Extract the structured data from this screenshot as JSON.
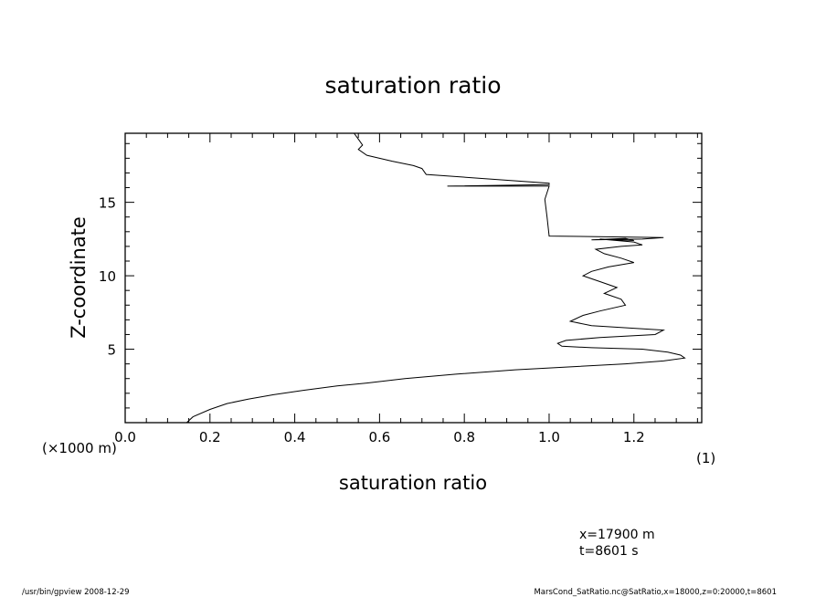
{
  "chart_data": {
    "type": "line",
    "title": "saturation ratio",
    "xlabel": "saturation ratio",
    "ylabel": "Z-coordinate",
    "y_unit_label": "(×1000 m)",
    "x_unit_label": "(1)",
    "xlim": [
      0.0,
      1.36
    ],
    "ylim": [
      0.0,
      19.7
    ],
    "x_ticks": [
      0.0,
      0.2,
      0.4,
      0.6,
      0.8,
      1.0,
      1.2
    ],
    "x_tick_labels": [
      "0.0",
      "0.2",
      "0.4",
      "0.6",
      "0.8",
      "1.0",
      "1.2"
    ],
    "y_ticks": [
      5,
      10,
      15
    ],
    "y_tick_labels": [
      "5",
      "10",
      "15"
    ],
    "grid": false,
    "series": [
      {
        "x": [
          0.145,
          0.16,
          0.2,
          0.24,
          0.29,
          0.35,
          0.42,
          0.5,
          0.57,
          0.66,
          0.78,
          0.92,
          1.05,
          1.18,
          1.27,
          1.32,
          1.31,
          1.28,
          1.22,
          1.1,
          1.03,
          1.02,
          1.04,
          1.12,
          1.25,
          1.27,
          1.1,
          1.05,
          1.08,
          1.12,
          1.18,
          1.17,
          1.13,
          1.16,
          1.12,
          1.08,
          1.1,
          1.14,
          1.2,
          1.17,
          1.13,
          1.11,
          1.17,
          1.22,
          1.2,
          1.12,
          1.2,
          1.18,
          1.1,
          1.22,
          1.27,
          1.0,
          0.995,
          0.99,
          1.0,
          0.76,
          1.0,
          1.0,
          0.71,
          0.7,
          0.68,
          0.63,
          0.57,
          0.55,
          0.56,
          0.55,
          0.54
        ],
        "y": [
          0.0,
          0.4,
          0.9,
          1.3,
          1.6,
          1.9,
          2.2,
          2.5,
          2.7,
          3.0,
          3.3,
          3.6,
          3.8,
          4.0,
          4.2,
          4.4,
          4.6,
          4.8,
          5.0,
          5.1,
          5.2,
          5.4,
          5.6,
          5.8,
          6.0,
          6.3,
          6.6,
          6.9,
          7.3,
          7.6,
          8.0,
          8.4,
          8.8,
          9.2,
          9.6,
          10.0,
          10.3,
          10.6,
          10.9,
          11.2,
          11.5,
          11.8,
          12.0,
          12.1,
          12.3,
          12.5,
          12.4,
          12.55,
          12.45,
          12.5,
          12.6,
          12.7,
          14.0,
          15.2,
          16.1,
          16.1,
          16.2,
          16.3,
          16.9,
          17.3,
          17.5,
          17.8,
          18.2,
          18.6,
          18.9,
          19.3,
          19.7
        ]
      }
    ],
    "annotations": [
      "x=17900 m",
      "t=8601 s"
    ]
  },
  "footer": {
    "left": "/usr/bin/gpview   2008-12-29",
    "right": "MarsCond_SatRatio.nc@SatRatio,x=18000,z=0:20000,t=8601"
  }
}
